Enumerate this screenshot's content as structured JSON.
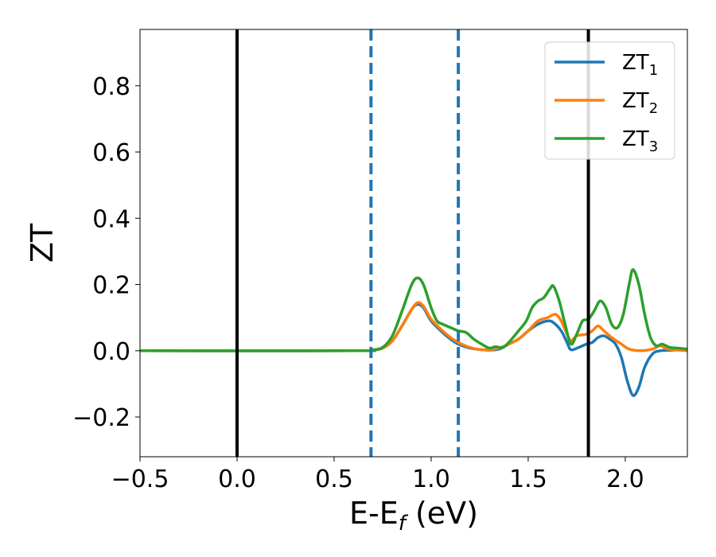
{
  "chart_data": {
    "type": "line",
    "xlabel": "E-E",
    "xlabel_sub": "f",
    "xlabel_unit": " (eV)",
    "ylabel": "ZT",
    "xlim": [
      -0.5,
      2.32
    ],
    "ylim": [
      -0.32,
      0.97
    ],
    "xticks": [
      -0.5,
      0.0,
      0.5,
      1.0,
      1.5,
      2.0
    ],
    "xtick_labels": [
      "−0.5",
      "0.0",
      "0.5",
      "1.0",
      "1.5",
      "2.0"
    ],
    "yticks": [
      -0.2,
      0.0,
      0.2,
      0.4,
      0.6,
      0.8
    ],
    "ytick_labels": [
      "−0.2",
      "0.0",
      "0.2",
      "0.4",
      "0.6",
      "0.8"
    ],
    "grid": false,
    "legend_position": "upper right",
    "vlines": [
      {
        "x": 0.0,
        "color": "#000000",
        "style": "solid"
      },
      {
        "x": 0.69,
        "color": "#1f77b4",
        "style": "dashed"
      },
      {
        "x": 1.14,
        "color": "#1f77b4",
        "style": "dashed"
      },
      {
        "x": 1.81,
        "color": "#000000",
        "style": "solid"
      }
    ],
    "series": [
      {
        "name": "ZT",
        "name_sub": "1",
        "color": "#1f77b4",
        "points": [
          [
            -0.5,
            0.0
          ],
          [
            0.6,
            0.0
          ],
          [
            0.69,
            0.002
          ],
          [
            0.75,
            0.008
          ],
          [
            0.8,
            0.03
          ],
          [
            0.85,
            0.075
          ],
          [
            0.9,
            0.125
          ],
          [
            0.93,
            0.14
          ],
          [
            0.96,
            0.13
          ],
          [
            1.0,
            0.09
          ],
          [
            1.05,
            0.06
          ],
          [
            1.1,
            0.035
          ],
          [
            1.14,
            0.02
          ],
          [
            1.2,
            0.008
          ],
          [
            1.26,
            0.003
          ],
          [
            1.3,
            0.002
          ],
          [
            1.35,
            0.005
          ],
          [
            1.4,
            0.02
          ],
          [
            1.45,
            0.035
          ],
          [
            1.5,
            0.06
          ],
          [
            1.55,
            0.08
          ],
          [
            1.6,
            0.09
          ],
          [
            1.63,
            0.085
          ],
          [
            1.67,
            0.06
          ],
          [
            1.7,
            0.025
          ],
          [
            1.72,
            0.003
          ],
          [
            1.76,
            0.01
          ],
          [
            1.8,
            0.02
          ],
          [
            1.83,
            0.025
          ],
          [
            1.86,
            0.04
          ],
          [
            1.89,
            0.045
          ],
          [
            1.92,
            0.035
          ],
          [
            1.95,
            0.02
          ],
          [
            1.98,
            -0.02
          ],
          [
            2.01,
            -0.09
          ],
          [
            2.04,
            -0.135
          ],
          [
            2.07,
            -0.11
          ],
          [
            2.1,
            -0.05
          ],
          [
            2.14,
            -0.01
          ],
          [
            2.18,
            0.0
          ],
          [
            2.25,
            0.002
          ],
          [
            2.32,
            0.003
          ]
        ]
      },
      {
        "name": "ZT",
        "name_sub": "2",
        "color": "#ff7f0e",
        "points": [
          [
            -0.5,
            0.0
          ],
          [
            0.6,
            0.0
          ],
          [
            0.69,
            0.002
          ],
          [
            0.75,
            0.008
          ],
          [
            0.8,
            0.03
          ],
          [
            0.85,
            0.075
          ],
          [
            0.9,
            0.125
          ],
          [
            0.93,
            0.145
          ],
          [
            0.96,
            0.135
          ],
          [
            1.0,
            0.095
          ],
          [
            1.05,
            0.065
          ],
          [
            1.1,
            0.04
          ],
          [
            1.14,
            0.025
          ],
          [
            1.2,
            0.01
          ],
          [
            1.26,
            0.003
          ],
          [
            1.3,
            0.003
          ],
          [
            1.35,
            0.008
          ],
          [
            1.4,
            0.02
          ],
          [
            1.45,
            0.035
          ],
          [
            1.5,
            0.06
          ],
          [
            1.55,
            0.09
          ],
          [
            1.6,
            0.1
          ],
          [
            1.64,
            0.11
          ],
          [
            1.67,
            0.09
          ],
          [
            1.7,
            0.05
          ],
          [
            1.72,
            0.03
          ],
          [
            1.75,
            0.045
          ],
          [
            1.8,
            0.05
          ],
          [
            1.83,
            0.06
          ],
          [
            1.86,
            0.075
          ],
          [
            1.89,
            0.06
          ],
          [
            1.93,
            0.04
          ],
          [
            1.98,
            0.02
          ],
          [
            2.02,
            0.005
          ],
          [
            2.08,
            0.0
          ],
          [
            2.14,
            0.005
          ],
          [
            2.18,
            0.015
          ],
          [
            2.22,
            0.005
          ],
          [
            2.32,
            0.0
          ]
        ]
      },
      {
        "name": "ZT",
        "name_sub": "3",
        "color": "#2ca02c",
        "points": [
          [
            -0.5,
            0.0
          ],
          [
            0.6,
            0.0
          ],
          [
            0.69,
            0.002
          ],
          [
            0.75,
            0.01
          ],
          [
            0.8,
            0.045
          ],
          [
            0.85,
            0.12
          ],
          [
            0.9,
            0.2
          ],
          [
            0.93,
            0.22
          ],
          [
            0.96,
            0.2
          ],
          [
            1.0,
            0.13
          ],
          [
            1.03,
            0.09
          ],
          [
            1.06,
            0.08
          ],
          [
            1.1,
            0.07
          ],
          [
            1.14,
            0.06
          ],
          [
            1.18,
            0.055
          ],
          [
            1.22,
            0.035
          ],
          [
            1.26,
            0.02
          ],
          [
            1.3,
            0.008
          ],
          [
            1.33,
            0.012
          ],
          [
            1.37,
            0.01
          ],
          [
            1.4,
            0.025
          ],
          [
            1.45,
            0.06
          ],
          [
            1.49,
            0.09
          ],
          [
            1.52,
            0.13
          ],
          [
            1.55,
            0.15
          ],
          [
            1.58,
            0.16
          ],
          [
            1.61,
            0.185
          ],
          [
            1.63,
            0.195
          ],
          [
            1.66,
            0.15
          ],
          [
            1.69,
            0.08
          ],
          [
            1.72,
            0.02
          ],
          [
            1.75,
            0.05
          ],
          [
            1.78,
            0.09
          ],
          [
            1.81,
            0.095
          ],
          [
            1.84,
            0.12
          ],
          [
            1.87,
            0.15
          ],
          [
            1.9,
            0.13
          ],
          [
            1.93,
            0.08
          ],
          [
            1.96,
            0.07
          ],
          [
            1.99,
            0.11
          ],
          [
            2.02,
            0.2
          ],
          [
            2.04,
            0.245
          ],
          [
            2.07,
            0.2
          ],
          [
            2.1,
            0.11
          ],
          [
            2.13,
            0.04
          ],
          [
            2.16,
            0.015
          ],
          [
            2.19,
            0.02
          ],
          [
            2.23,
            0.01
          ],
          [
            2.27,
            0.008
          ],
          [
            2.32,
            0.005
          ]
        ]
      }
    ]
  }
}
